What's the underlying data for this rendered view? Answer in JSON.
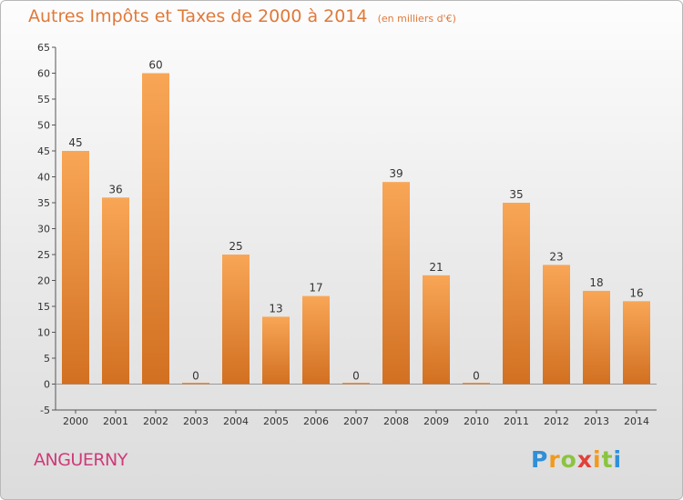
{
  "colors": {
    "bar_light": "#f8a656",
    "bar_dark": "#d27021",
    "title": "#e0793a",
    "commune": "#cf3a7a"
  },
  "commune_name": "ANGUERNY",
  "logo": {
    "letters": [
      {
        "ch": "P",
        "color": "#2f8fd8"
      },
      {
        "ch": "r",
        "color": "#f29a1c"
      },
      {
        "ch": "o",
        "color": "#8bc43f"
      },
      {
        "ch": "x",
        "color": "#e0413a"
      },
      {
        "ch": "i",
        "color": "#f29a1c"
      },
      {
        "ch": "t",
        "color": "#8bc43f"
      },
      {
        "ch": "i",
        "color": "#2f8fd8"
      }
    ]
  },
  "chart_data": {
    "type": "bar",
    "title": "Autres Impôts et Taxes de 2000 à 2014",
    "subtitle": "(en milliers d'€)",
    "categories": [
      "2000",
      "2001",
      "2002",
      "2003",
      "2004",
      "2005",
      "2006",
      "2007",
      "2008",
      "2009",
      "2010",
      "2011",
      "2012",
      "2013",
      "2014"
    ],
    "values": [
      45,
      36,
      60,
      0,
      25,
      13,
      17,
      0,
      39,
      21,
      0,
      35,
      23,
      18,
      16
    ],
    "ylim": [
      -5,
      65
    ],
    "yticks": [
      -5,
      0,
      5,
      10,
      15,
      20,
      25,
      30,
      35,
      40,
      45,
      50,
      55,
      60,
      65
    ],
    "grid": false,
    "legend": "none"
  }
}
